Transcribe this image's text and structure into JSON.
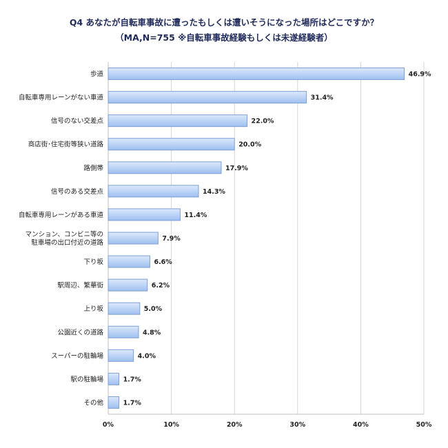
{
  "chart_data": {
    "type": "bar",
    "orientation": "horizontal",
    "title": "Q4 あなたが自転車事故に遭ったもしくは遭いそうになった場所はどこですか？",
    "subtitle": "（MA,N=755 ※自転車事故経験もしくは未遂経験者）",
    "categories": [
      [
        "歩道"
      ],
      [
        "自転車専用レーンがない車道"
      ],
      [
        "信号のない交差点"
      ],
      [
        "商店街･住宅街等狭い道路"
      ],
      [
        "路側帯"
      ],
      [
        "信号のある交差点"
      ],
      [
        "自転車専用レーンがある車道"
      ],
      [
        "マンション、コンビニ等の",
        "駐車場の出口付近の道路"
      ],
      [
        "下り坂"
      ],
      [
        "駅周辺、繁華街"
      ],
      [
        "上り坂"
      ],
      [
        "公園近くの道路"
      ],
      [
        "スーパーの駐輪場"
      ],
      [
        "駅の駐輪場"
      ],
      [
        "その他"
      ]
    ],
    "values": [
      46.9,
      31.4,
      22.0,
      20.0,
      17.9,
      14.3,
      11.4,
      7.9,
      6.6,
      6.2,
      5.0,
      4.8,
      4.0,
      1.7,
      1.7
    ],
    "value_labels": [
      "46.9%",
      "31.4%",
      "22.0%",
      "20.0%",
      "17.9%",
      "14.3%",
      "11.4%",
      "7.9%",
      "6.6%",
      "6.2%",
      "5.0%",
      "4.8%",
      "4.0%",
      "1.7%",
      "1.7%"
    ],
    "xlim": [
      0,
      50
    ],
    "xticks": [
      0,
      10,
      20,
      30,
      40,
      50
    ],
    "xtick_labels": [
      "0%",
      "10%",
      "20%",
      "30%",
      "40%",
      "50%"
    ],
    "grid": true,
    "legend": "none",
    "colors": {
      "bar_fill_light": "#dce9fb",
      "bar_fill_dark": "#9ebff0",
      "bar_stroke": "#7f9fd2",
      "grid": "#d4d4d4",
      "axis": "#bfbfbf",
      "title": "#1f2a5a"
    }
  }
}
